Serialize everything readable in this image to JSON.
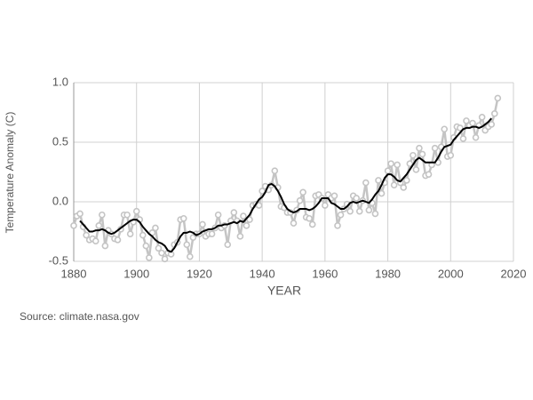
{
  "chart_data": {
    "type": "line",
    "x_label": "YEAR",
    "y_label": "Temperature Anomaly (C)",
    "source": "Source: climate.nasa.gov",
    "x": [
      1880,
      1881,
      1882,
      1883,
      1884,
      1885,
      1886,
      1887,
      1888,
      1889,
      1890,
      1891,
      1892,
      1893,
      1894,
      1895,
      1896,
      1897,
      1898,
      1899,
      1900,
      1901,
      1902,
      1903,
      1904,
      1905,
      1906,
      1907,
      1908,
      1909,
      1910,
      1911,
      1912,
      1913,
      1914,
      1915,
      1916,
      1917,
      1918,
      1919,
      1920,
      1921,
      1922,
      1923,
      1924,
      1925,
      1926,
      1927,
      1928,
      1929,
      1930,
      1931,
      1932,
      1933,
      1934,
      1935,
      1936,
      1937,
      1938,
      1939,
      1940,
      1941,
      1942,
      1943,
      1944,
      1945,
      1946,
      1947,
      1948,
      1949,
      1950,
      1951,
      1952,
      1953,
      1954,
      1955,
      1956,
      1957,
      1958,
      1959,
      1960,
      1961,
      1962,
      1963,
      1964,
      1965,
      1966,
      1967,
      1968,
      1969,
      1970,
      1971,
      1972,
      1973,
      1974,
      1975,
      1976,
      1977,
      1978,
      1979,
      1980,
      1981,
      1982,
      1983,
      1984,
      1985,
      1986,
      1987,
      1988,
      1989,
      1990,
      1991,
      1992,
      1993,
      1994,
      1995,
      1996,
      1997,
      1998,
      1999,
      2000,
      2001,
      2002,
      2003,
      2004,
      2005,
      2006,
      2007,
      2008,
      2009,
      2010,
      2011,
      2012,
      2013,
      2014,
      2015
    ],
    "series": [
      {
        "color": "#c4c4c4",
        "markers": true,
        "values": [
          -0.2,
          -0.12,
          -0.1,
          -0.21,
          -0.28,
          -0.32,
          -0.31,
          -0.33,
          -0.2,
          -0.11,
          -0.37,
          -0.24,
          -0.27,
          -0.31,
          -0.32,
          -0.23,
          -0.11,
          -0.11,
          -0.27,
          -0.17,
          -0.08,
          -0.15,
          -0.28,
          -0.37,
          -0.47,
          -0.26,
          -0.22,
          -0.39,
          -0.43,
          -0.48,
          -0.43,
          -0.44,
          -0.36,
          -0.34,
          -0.15,
          -0.14,
          -0.36,
          -0.46,
          -0.3,
          -0.27,
          -0.27,
          -0.19,
          -0.29,
          -0.27,
          -0.27,
          -0.22,
          -0.11,
          -0.22,
          -0.2,
          -0.36,
          -0.16,
          -0.09,
          -0.16,
          -0.29,
          -0.12,
          -0.2,
          -0.15,
          -0.03,
          -0.02,
          -0.03,
          0.09,
          0.13,
          0.1,
          0.14,
          0.26,
          0.12,
          -0.04,
          -0.05,
          -0.09,
          -0.09,
          -0.18,
          -0.07,
          0.01,
          0.08,
          -0.13,
          -0.14,
          -0.19,
          0.05,
          0.06,
          0.03,
          -0.03,
          0.06,
          0.03,
          0.05,
          -0.2,
          -0.11,
          -0.06,
          -0.02,
          -0.08,
          0.05,
          0.03,
          -0.08,
          0.01,
          0.16,
          -0.07,
          -0.01,
          -0.1,
          0.18,
          0.07,
          0.16,
          0.26,
          0.32,
          0.14,
          0.31,
          0.16,
          0.12,
          0.18,
          0.32,
          0.39,
          0.27,
          0.45,
          0.4,
          0.22,
          0.23,
          0.31,
          0.45,
          0.33,
          0.46,
          0.61,
          0.38,
          0.39,
          0.54,
          0.63,
          0.62,
          0.53,
          0.68,
          0.64,
          0.66,
          0.54,
          0.64,
          0.71,
          0.6,
          0.63,
          0.65,
          0.74,
          0.87
        ]
      },
      {
        "color": "#000000",
        "markers": false,
        "values": [
          null,
          null,
          -0.16,
          -0.19,
          -0.22,
          -0.25,
          -0.25,
          -0.24,
          -0.24,
          -0.23,
          -0.24,
          -0.26,
          -0.27,
          -0.26,
          -0.24,
          -0.22,
          -0.2,
          -0.18,
          -0.16,
          -0.15,
          -0.15,
          -0.17,
          -0.21,
          -0.24,
          -0.27,
          -0.29,
          -0.32,
          -0.34,
          -0.35,
          -0.37,
          -0.41,
          -0.42,
          -0.39,
          -0.34,
          -0.29,
          -0.26,
          -0.26,
          -0.25,
          -0.26,
          -0.28,
          -0.27,
          -0.25,
          -0.24,
          -0.23,
          -0.23,
          -0.22,
          -0.2,
          -0.2,
          -0.19,
          -0.19,
          -0.18,
          -0.17,
          -0.18,
          -0.16,
          -0.17,
          -0.14,
          -0.11,
          -0.06,
          -0.02,
          0.02,
          0.04,
          0.08,
          0.14,
          0.15,
          0.13,
          0.09,
          0.04,
          -0.02,
          -0.06,
          -0.08,
          -0.09,
          -0.08,
          -0.06,
          -0.06,
          -0.06,
          -0.07,
          -0.06,
          -0.04,
          -0.01,
          0.03,
          0.03,
          0.03,
          -0.01,
          -0.02,
          -0.04,
          -0.06,
          -0.06,
          -0.04,
          -0.01,
          0.0,
          -0.01,
          0.0,
          0.01,
          0.0,
          -0.01,
          0.02,
          0.06,
          0.09,
          0.14,
          0.2,
          0.23,
          0.23,
          0.21,
          0.18,
          0.17,
          0.2,
          0.23,
          0.27,
          0.31,
          0.35,
          0.37,
          0.35,
          0.33,
          0.33,
          0.33,
          0.33,
          0.37,
          0.42,
          0.46,
          0.47,
          0.48,
          0.52,
          0.55,
          0.58,
          0.61,
          0.62,
          0.62,
          0.63,
          0.63,
          0.62,
          0.63,
          0.65,
          0.67,
          0.7,
          null,
          null
        ]
      }
    ],
    "xlim": [
      1880,
      2020
    ],
    "xticks": [
      1880,
      1900,
      1920,
      1940,
      1960,
      1980,
      2000,
      2020
    ],
    "ylim": [
      -0.5,
      1.0
    ],
    "yticks": [
      {
        "value": -0.5,
        "label": "-0.5"
      },
      {
        "value": 0,
        "label": "0.0"
      },
      0.5,
      {
        "value": 1,
        "label": "1.0"
      }
    ],
    "grid": true
  }
}
